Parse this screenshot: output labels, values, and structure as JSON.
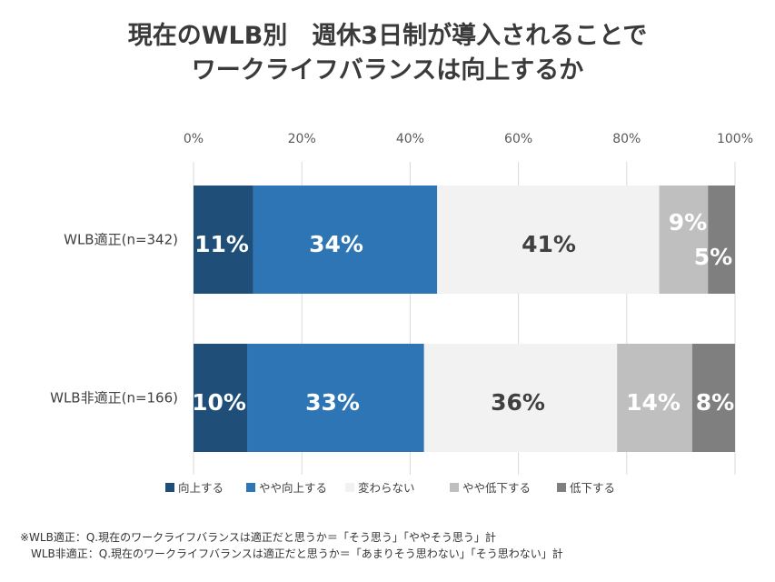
{
  "title_line1": "現在のWLB別　週休3日制が導入されることで",
  "title_line2": "ワークライフバランスは向上するか",
  "chart_data": {
    "type": "bar",
    "orientation": "horizontal",
    "stacked": true,
    "xlim": [
      0,
      100
    ],
    "xticks": [
      "0%",
      "20%",
      "40%",
      "60%",
      "80%",
      "100%"
    ],
    "grid": true,
    "legend_position": "bottom",
    "categories": [
      "WLB適正(n=342)",
      "WLB非適正(n=166)"
    ],
    "series": [
      {
        "name": "向上する",
        "color": "#1f4e79",
        "values": [
          11,
          10
        ],
        "labels": [
          "11%",
          "10%"
        ],
        "label_color": "#ffffff"
      },
      {
        "name": "やや向上する",
        "color": "#2e75b6",
        "values": [
          34,
          33
        ],
        "labels": [
          "34%",
          "33%"
        ],
        "label_color": "#ffffff"
      },
      {
        "name": "変わらない",
        "color": "#f2f2f2",
        "values": [
          41,
          36
        ],
        "labels": [
          "41%",
          "36%"
        ],
        "label_color": "#404040"
      },
      {
        "name": "やや低下する",
        "color": "#bfbfbf",
        "values": [
          9,
          14
        ],
        "labels": [
          "9%",
          "14%"
        ],
        "label_color": "#ffffff"
      },
      {
        "name": "低下する",
        "color": "#7f7f7f",
        "values": [
          5,
          8
        ],
        "labels": [
          "5%",
          "8%"
        ],
        "label_color": "#ffffff"
      }
    ]
  },
  "footnote_line1": "※WLB適正：Q.現在のワークライフバランスは適正だと思うか＝「そう思う」「ややそう思う」計",
  "footnote_line2": "　WLB非適正：Q.現在のワークライフバランスは適正だと思うか＝「あまりそう思わない」「そう思わない」計"
}
